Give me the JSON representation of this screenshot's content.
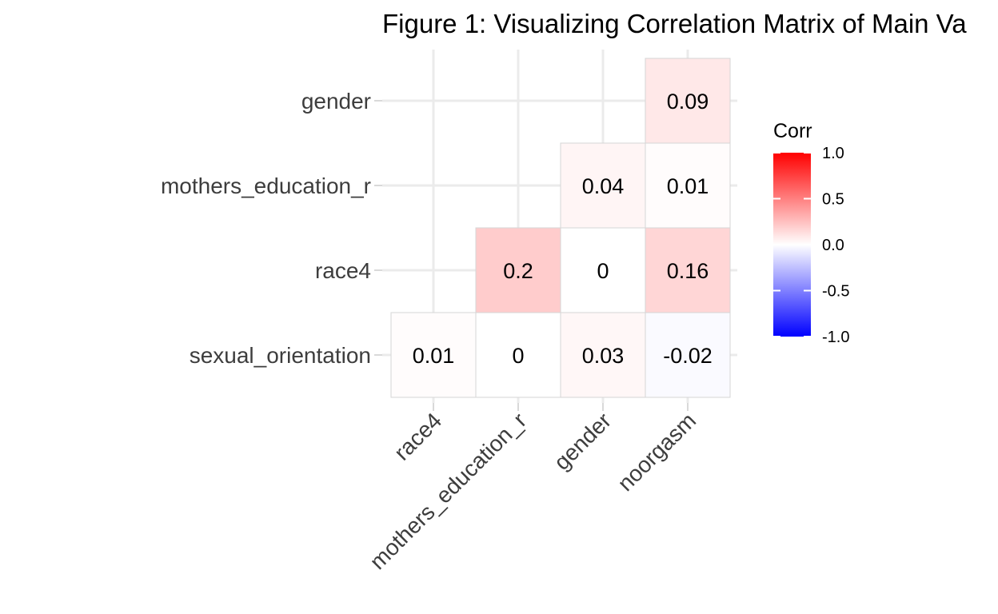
{
  "chart_data": {
    "type": "heatmap",
    "title": "Figure 1: Visualizing Correlation Matrix of Main Va",
    "x_categories": [
      "race4",
      "mothers_education_r",
      "gender",
      "noorgasm"
    ],
    "y_categories": [
      "gender",
      "mothers_education_r",
      "race4",
      "sexual_orientation"
    ],
    "cells": [
      {
        "row": "gender",
        "col": "noorgasm",
        "value": 0.09,
        "label": "0.09"
      },
      {
        "row": "mothers_education_r",
        "col": "gender",
        "value": 0.04,
        "label": "0.04"
      },
      {
        "row": "mothers_education_r",
        "col": "noorgasm",
        "value": 0.01,
        "label": "0.01"
      },
      {
        "row": "race4",
        "col": "mothers_education_r",
        "value": 0.2,
        "label": "0.2"
      },
      {
        "row": "race4",
        "col": "gender",
        "value": 0,
        "label": "0"
      },
      {
        "row": "race4",
        "col": "noorgasm",
        "value": 0.16,
        "label": "0.16"
      },
      {
        "row": "sexual_orientation",
        "col": "race4",
        "value": 0.01,
        "label": "0.01"
      },
      {
        "row": "sexual_orientation",
        "col": "mothers_education_r",
        "value": 0,
        "label": "0"
      },
      {
        "row": "sexual_orientation",
        "col": "gender",
        "value": 0.03,
        "label": "0.03"
      },
      {
        "row": "sexual_orientation",
        "col": "noorgasm",
        "value": -0.02,
        "label": "-0.02"
      }
    ],
    "legend": {
      "title": "Corr",
      "placement": "right",
      "limits": [
        -1,
        1
      ],
      "ticks": [
        "1.0",
        "0.5",
        "0.0",
        "-0.5",
        "-1.0"
      ],
      "colors": {
        "high": "#ff0000",
        "mid": "#ffffff",
        "low": "#0000ff"
      }
    },
    "grid": true,
    "gridline_color": "#ebebeb",
    "tile_border_color": "#d6d6d6"
  }
}
